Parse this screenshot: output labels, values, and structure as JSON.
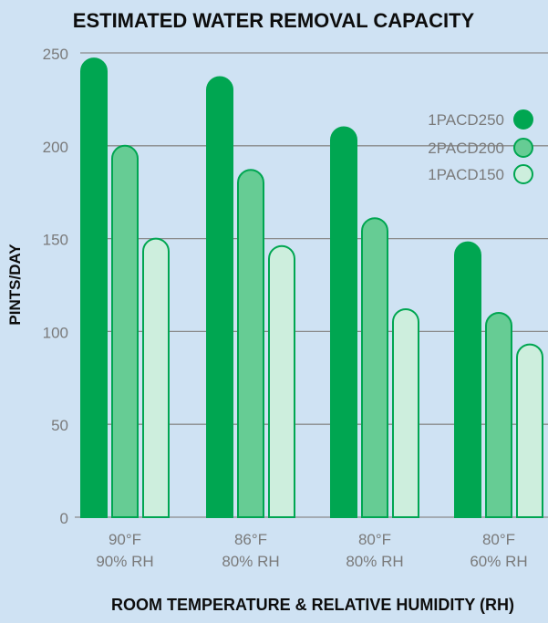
{
  "chart_data": {
    "type": "bar",
    "title": "ESTIMATED WATER REMOVAL CAPACITY",
    "xlabel": "ROOM TEMPERATURE & RELATIVE HUMIDITY (RH)",
    "ylabel": "PINTS/DAY",
    "ylim": [
      0,
      250
    ],
    "yticks": [
      "0",
      "50",
      "100",
      "150",
      "200",
      "250"
    ],
    "grid": true,
    "legend_position": "top-right",
    "categories": [
      {
        "line1": "90°F",
        "line2": "90% RH"
      },
      {
        "line1": "86°F",
        "line2": "80% RH"
      },
      {
        "line1": "80°F",
        "line2": "80% RH"
      },
      {
        "line1": "80°F",
        "line2": "60% RH"
      }
    ],
    "series": [
      {
        "name": "1PACD250",
        "color": "#00a651",
        "stroke": "#00a651",
        "values": [
          247,
          237,
          210,
          148
        ]
      },
      {
        "name": "2PACD200",
        "color": "#66cc94",
        "stroke": "#00a651",
        "values": [
          200,
          187,
          161,
          110
        ]
      },
      {
        "name": "1PACD150",
        "color": "#cdeedd",
        "stroke": "#00a651",
        "values": [
          150,
          146,
          112,
          93
        ]
      }
    ]
  }
}
